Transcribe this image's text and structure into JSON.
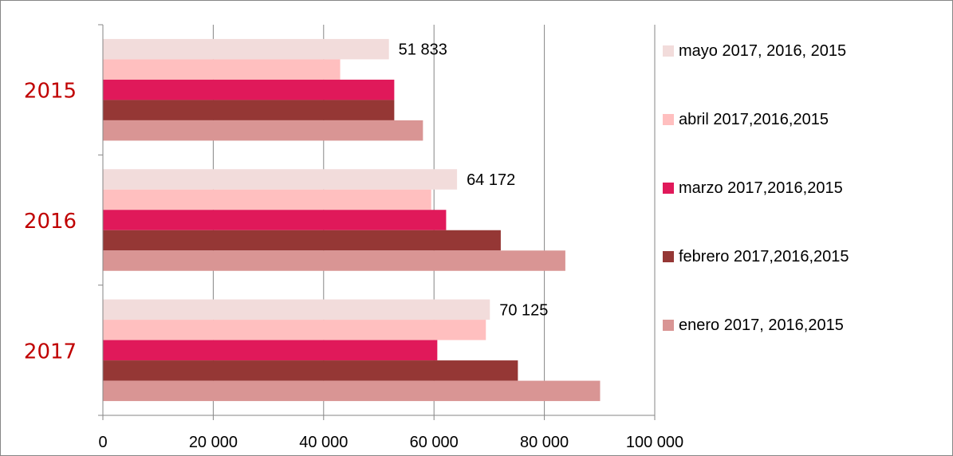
{
  "chart_data": {
    "type": "bar",
    "orientation": "horizontal",
    "categories": [
      "2015",
      "2016",
      "2017"
    ],
    "category_color": "#c00000",
    "xlim": [
      0,
      100000
    ],
    "xticks": [
      0,
      20000,
      40000,
      60000,
      80000,
      100000
    ],
    "xtick_labels": [
      "0",
      "20 000",
      "40 000",
      "60 000",
      "80 000",
      "100 000"
    ],
    "grid": true,
    "legend_position": "right",
    "series": [
      {
        "name": "mayo 2017, 2016, 2015",
        "color": "#f2dcdb",
        "values": [
          51833,
          64172,
          70125
        ],
        "data_labels": [
          "51 833",
          "64 172",
          "70 125"
        ]
      },
      {
        "name": "abril 2017,2016,2015",
        "color": "#ffbfbf",
        "values": [
          43000,
          59500,
          69400
        ]
      },
      {
        "name": "marzo 2017,2016,2015",
        "color": "#e0195a",
        "values": [
          52800,
          62200,
          60600
        ]
      },
      {
        "name": "febrero 2017,2016,2015",
        "color": "#953735",
        "values": [
          52800,
          72100,
          75200
        ]
      },
      {
        "name": "enero 2017, 2016,2015",
        "color": "#d99594",
        "values": [
          58000,
          83800,
          90100
        ]
      }
    ]
  }
}
